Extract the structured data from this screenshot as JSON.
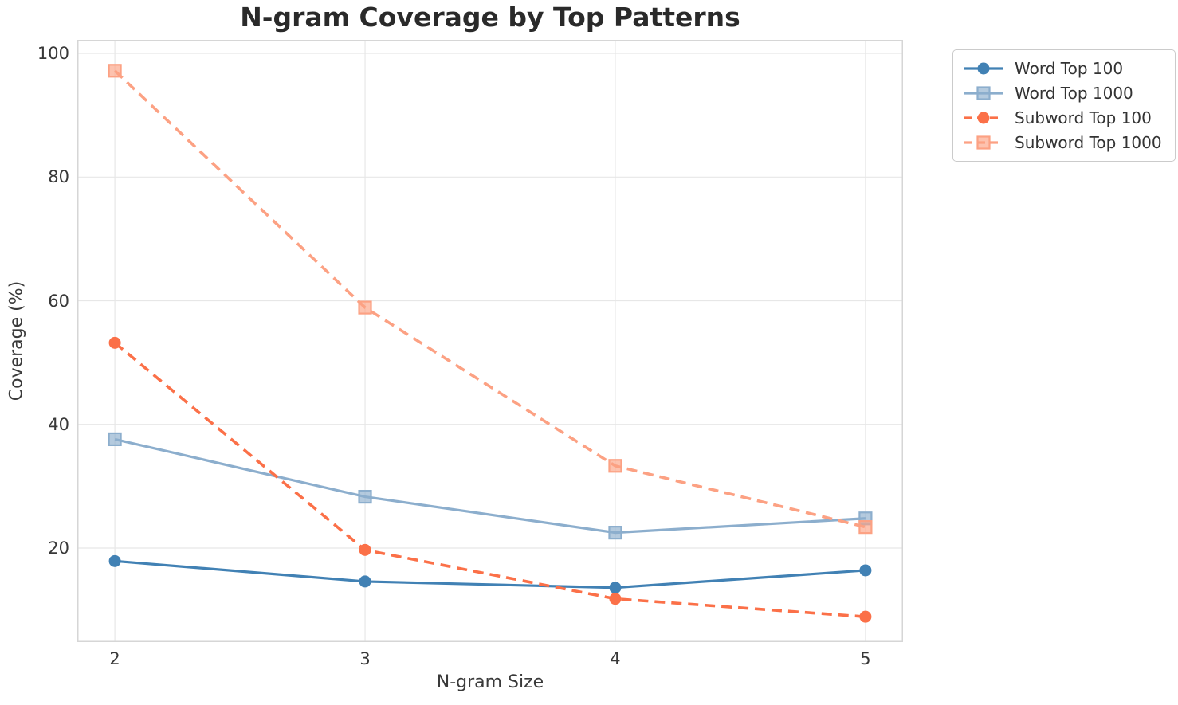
{
  "chart_data": {
    "type": "line",
    "title": "N-gram Coverage by Top Patterns",
    "xlabel": "N-gram Size",
    "ylabel": "Coverage (%)",
    "x": [
      2,
      3,
      4,
      5
    ],
    "xticks": [
      2,
      3,
      4,
      5
    ],
    "yticks": [
      20,
      40,
      60,
      80,
      100
    ],
    "xlim": [
      1.85,
      5.15
    ],
    "ylim": [
      4.8,
      102.2
    ],
    "grid": true,
    "grid_color": "#e7e7e7",
    "spine_color": "#d6d6d6",
    "background": "#ffffff",
    "legend_position": "outside upper right",
    "series": [
      {
        "name": "Word Top 100",
        "values": [
          17.9,
          14.6,
          13.6,
          16.4
        ],
        "color": "#4181b4",
        "style": "solid",
        "marker": "circle"
      },
      {
        "name": "Word Top 1000",
        "values": [
          37.6,
          28.3,
          22.5,
          24.8
        ],
        "color": "#8caecd",
        "style": "solid",
        "marker": "square"
      },
      {
        "name": "Subword Top 100",
        "values": [
          53.2,
          19.7,
          11.8,
          8.9
        ],
        "color": "#fb7048",
        "style": "dashed",
        "marker": "circle"
      },
      {
        "name": "Subword Top 1000",
        "values": [
          97.2,
          58.9,
          33.3,
          23.4
        ],
        "color": "#fca183",
        "style": "dashed",
        "marker": "square"
      }
    ]
  }
}
